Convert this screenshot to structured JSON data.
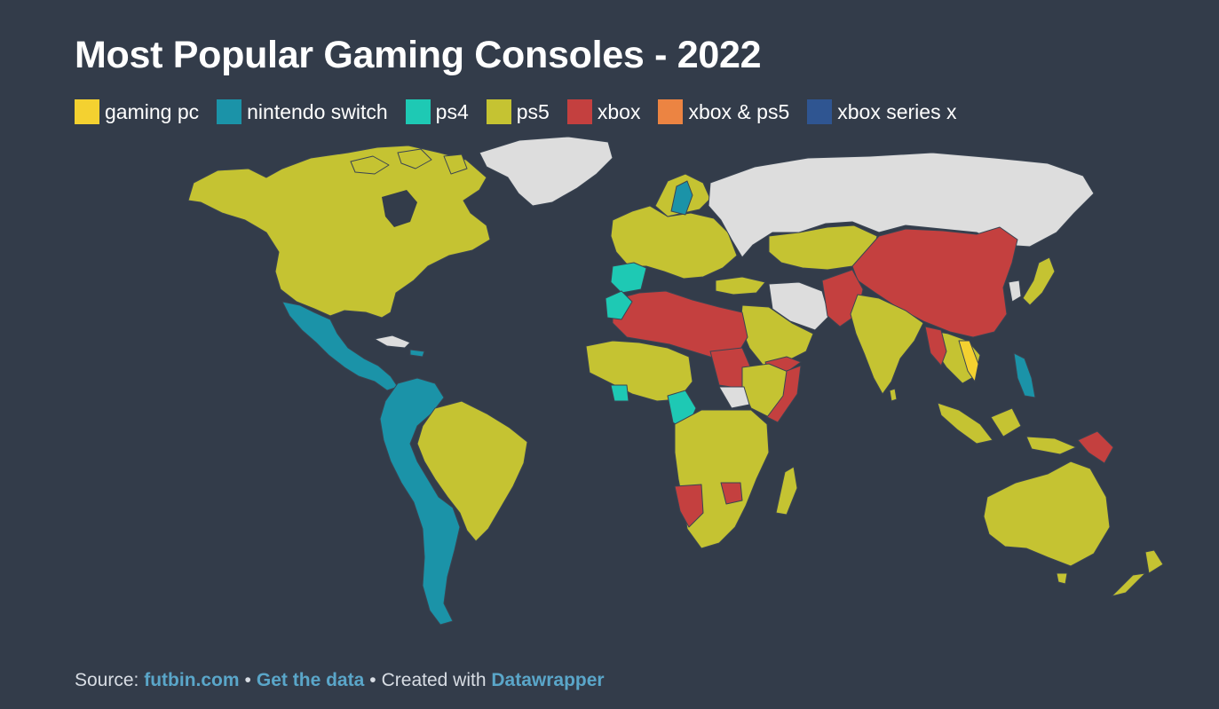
{
  "title": "Most Popular Gaming Consoles - 2022",
  "legend": [
    {
      "label": "gaming pc",
      "color": "#f4d130"
    },
    {
      "label": "nintendo switch",
      "color": "#1b93a8"
    },
    {
      "label": "ps4",
      "color": "#1ec9b4"
    },
    {
      "label": "ps5",
      "color": "#c5c332"
    },
    {
      "label": "xbox",
      "color": "#c4403f"
    },
    {
      "label": "xbox & ps5",
      "color": "#ec8442"
    },
    {
      "label": "xbox series x",
      "color": "#2f5591"
    }
  ],
  "no_data_color": "#dddddd",
  "background_color": "#333c4a",
  "source": {
    "prefix": "Source: ",
    "source_link": "futbin.com",
    "separator": "•",
    "data_link": "Get the data",
    "created": "Created with ",
    "tool_link": "Datawrapper"
  }
}
